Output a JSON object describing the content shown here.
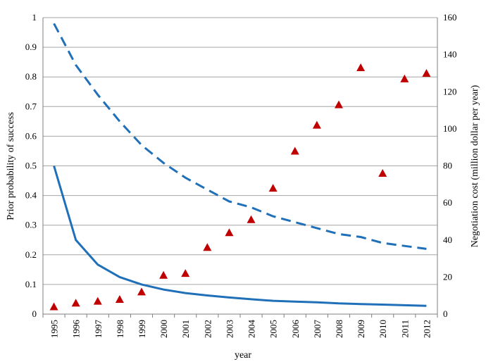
{
  "chart_data": {
    "type": "line",
    "title": "",
    "xlabel": "year",
    "ylabel": "Prior probability of success",
    "y2label": "Negotiation cost (million dollar per year)",
    "categories": [
      "1995",
      "1996",
      "1997",
      "1998",
      "1999",
      "2000",
      "2001",
      "2002",
      "2003",
      "2004",
      "2005",
      "2006",
      "2007",
      "2008",
      "2009",
      "2010",
      "2011",
      "2012"
    ],
    "ylim": [
      0,
      1
    ],
    "y2lim": [
      0,
      160
    ],
    "yticks": [
      "0",
      "0.1",
      "0.2",
      "0.3",
      "0.4",
      "0.5",
      "0.6",
      "0.7",
      "0.8",
      "0.9",
      "1"
    ],
    "y2ticks": [
      "0",
      "20",
      "40",
      "60",
      "80",
      "100",
      "120",
      "140",
      "160"
    ],
    "grid": true,
    "legend": "none",
    "series": [
      {
        "style": "solid-line",
        "axis": "left",
        "color": "#1f70b8",
        "values": [
          0.5,
          0.25,
          0.167,
          0.125,
          0.1,
          0.083,
          0.071,
          0.063,
          0.056,
          0.05,
          0.045,
          0.042,
          0.04,
          0.036,
          0.034,
          0.032,
          0.03,
          0.028
        ]
      },
      {
        "style": "dashed-line",
        "axis": "left",
        "color": "#1f70b8",
        "values": [
          0.98,
          0.84,
          0.74,
          0.65,
          0.57,
          0.51,
          0.46,
          0.42,
          0.38,
          0.36,
          0.33,
          0.31,
          0.29,
          0.27,
          0.26,
          0.24,
          0.23,
          0.22
        ]
      },
      {
        "style": "triangle-markers",
        "axis": "right",
        "color": "#c00000",
        "values": [
          4,
          6,
          7,
          8,
          12,
          21,
          22,
          36,
          44,
          51,
          68,
          88,
          102,
          113,
          133,
          76,
          127,
          130
        ]
      }
    ]
  }
}
